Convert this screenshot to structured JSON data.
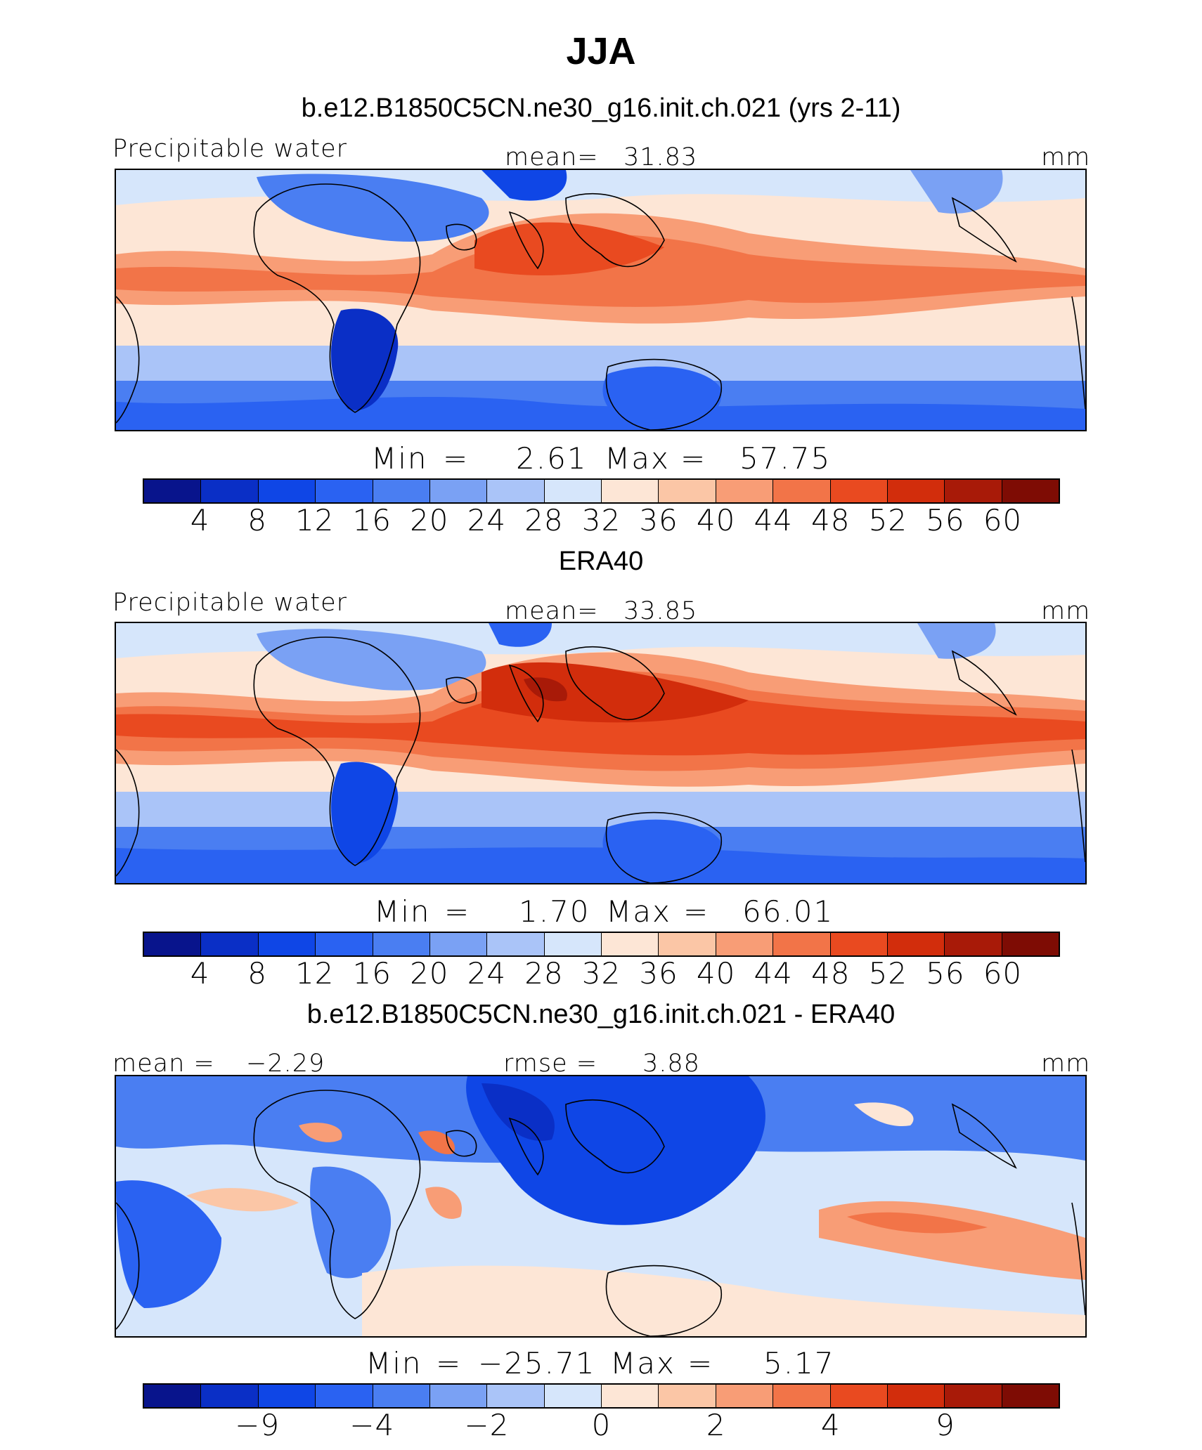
{
  "figure": {
    "title": "JJA"
  },
  "colors": {
    "scale": [
      "#08148c",
      "#0a2fc6",
      "#0f46e6",
      "#2a62f2",
      "#4a7ef2",
      "#7aa1f4",
      "#aac4f8",
      "#d6e6fb",
      "#fde6d6",
      "#fbc6a6",
      "#f89d76",
      "#f27448",
      "#e94a20",
      "#d22d0c",
      "#a81a08",
      "#7e0c04"
    ],
    "land_outline": "#000000"
  },
  "panels": [
    {
      "title": "b.e12.B1850C5CN.ne30_g16.init.ch.021 (yrs 2-11)",
      "left_label": "Precipitable water",
      "center_label": "mean=",
      "center_value": "31.83",
      "right_label": "mm",
      "min_label": "Min",
      "min_eq": "=",
      "min_value": "2.61",
      "max_label": "Max",
      "max_eq": "=",
      "max_value": "57.75"
    },
    {
      "title": "ERA40",
      "left_label": "Precipitable water",
      "center_label": "mean=",
      "center_value": "33.85",
      "right_label": "mm",
      "min_label": "Min",
      "min_eq": "=",
      "min_value": "1.70",
      "max_label": "Max",
      "max_eq": "=",
      "max_value": "66.01"
    },
    {
      "title": "b.e12.B1850C5CN.ne30_g16.init.ch.021 - ERA40",
      "left_label": "mean =",
      "left_value": "−2.29",
      "center_label": "rmse =",
      "center_value": "3.88",
      "right_label": "mm",
      "min_label": "Min",
      "min_eq": "=",
      "min_value": "−25.71",
      "max_label": "Max",
      "max_eq": "=",
      "max_value": "5.17"
    }
  ],
  "chart_data": [
    {
      "type": "heatmap",
      "variable": "Precipitable water",
      "units": "mm",
      "season": "JJA",
      "mean": 31.83,
      "min": 2.61,
      "max": 57.75,
      "contour_levels": [
        4,
        8,
        12,
        16,
        20,
        24,
        28,
        32,
        36,
        40,
        44,
        48,
        52,
        56,
        60
      ],
      "colorbar_tick_labels": [
        "4",
        "8",
        "12",
        "16",
        "20",
        "24",
        "28",
        "32",
        "36",
        "40",
        "44",
        "48",
        "52",
        "56",
        "60"
      ]
    },
    {
      "type": "heatmap",
      "variable": "Precipitable water",
      "units": "mm",
      "season": "JJA",
      "mean": 33.85,
      "min": 1.7,
      "max": 66.01,
      "contour_levels": [
        4,
        8,
        12,
        16,
        20,
        24,
        28,
        32,
        36,
        40,
        44,
        48,
        52,
        56,
        60
      ],
      "colorbar_tick_labels": [
        "4",
        "8",
        "12",
        "16",
        "20",
        "24",
        "28",
        "32",
        "36",
        "40",
        "44",
        "48",
        "52",
        "56",
        "60"
      ]
    },
    {
      "type": "heatmap",
      "units": "mm",
      "season": "JJA",
      "mean": -2.29,
      "rmse": 3.88,
      "min": -25.71,
      "max": 5.17,
      "colorbar_tick_labels": [
        "−9",
        "−4",
        "−2",
        "0",
        "2",
        "4",
        "9"
      ],
      "colorbar_tick_levels": [
        -9,
        -4,
        -2,
        0,
        2,
        4,
        9
      ]
    }
  ]
}
